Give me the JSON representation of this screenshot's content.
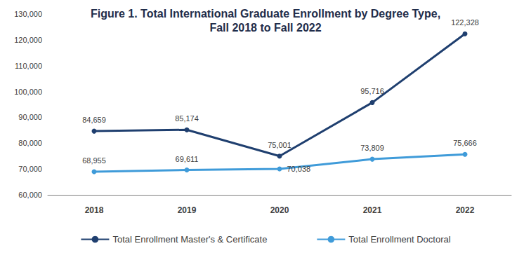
{
  "chart_data": {
    "type": "line",
    "title": "Figure 1. Total International Graduate Enrollment by Degree Type,\nFall 2018 to Fall 2022",
    "categories": [
      "2018",
      "2019",
      "2020",
      "2021",
      "2022"
    ],
    "series": [
      {
        "name": "Total Enrollment Master's & Certificate",
        "color": "#1f3f6f",
        "values": [
          84659,
          85174,
          75001,
          95716,
          122328
        ],
        "value_labels": [
          "84,659",
          "85,174",
          "75,001",
          "95,716",
          "122,328"
        ]
      },
      {
        "name": "Total Enrollment Doctoral",
        "color": "#3f9bd9",
        "values": [
          68955,
          69611,
          70038,
          73809,
          75666
        ],
        "value_labels": [
          "68,955",
          "69,611",
          "70,038",
          "73,809",
          "75,666"
        ]
      }
    ],
    "ylim": [
      60000,
      130000
    ],
    "yticks": [
      {
        "value": 60000,
        "label": "60,000"
      },
      {
        "value": 70000,
        "label": "70,000"
      },
      {
        "value": 80000,
        "label": "80,000"
      },
      {
        "value": 90000,
        "label": "90,000"
      },
      {
        "value": 100000,
        "label": "100,000"
      },
      {
        "value": 110000,
        "label": "110,000"
      },
      {
        "value": 120000,
        "label": "120,000"
      },
      {
        "value": 130000,
        "label": "130,000"
      }
    ],
    "grid": false,
    "legend": "bottom",
    "data_labels": true,
    "marker": "circle",
    "line_style": "solid"
  }
}
